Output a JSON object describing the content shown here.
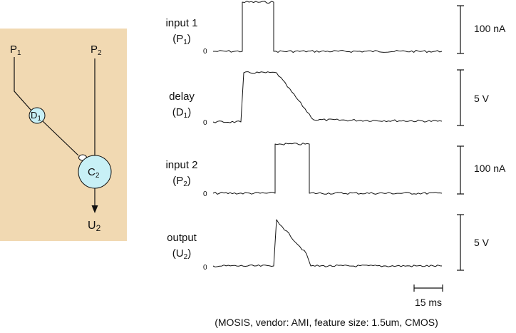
{
  "colors": {
    "panel_background": "#f1d9b2",
    "node_fill": "#c8f0f6",
    "line": "#111111"
  },
  "schematic": {
    "inputs": [
      {
        "letter": "P",
        "index": "1"
      },
      {
        "letter": "P",
        "index": "2"
      }
    ],
    "delay_node": {
      "letter": "D",
      "index": "1"
    },
    "cell_node": {
      "letter": "C",
      "index": "2"
    },
    "output": {
      "letter": "U",
      "index": "2"
    }
  },
  "traces": [
    {
      "name": "input 1",
      "sym": "P",
      "idx": "1",
      "zero": "0",
      "scale": "100 nA",
      "kind": "current"
    },
    {
      "name": "delay",
      "sym": "D",
      "idx": "1",
      "zero": "0",
      "scale": "5 V",
      "kind": "voltage"
    },
    {
      "name": "input 2",
      "sym": "P",
      "idx": "2",
      "zero": "0",
      "scale": "100 nA",
      "kind": "current"
    },
    {
      "name": "output",
      "sym": "U",
      "idx": "2",
      "zero": "0",
      "scale": "5 V",
      "kind": "voltage"
    }
  ],
  "timescale": {
    "label": "15 ms"
  },
  "caption": "(MOSIS, vendor: AMI, feature size: 1.5um, CMOS)"
}
